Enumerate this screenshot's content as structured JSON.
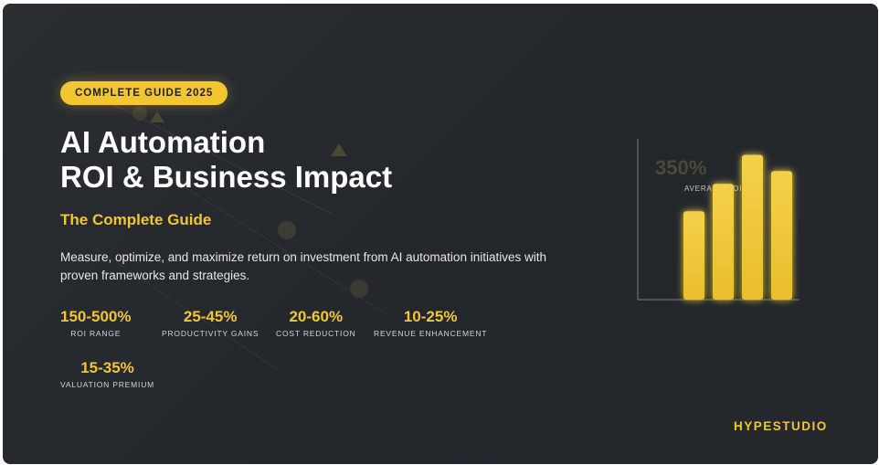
{
  "badge": "COMPLETE GUIDE 2025",
  "title": {
    "line1": "AI Automation",
    "line2": "ROI & Business Impact"
  },
  "subtitle": "The Complete Guide",
  "description": "Measure, optimize, and maximize return on investment from AI automation initiatives with proven frameworks and strategies.",
  "stats": [
    {
      "value": "150-500%",
      "label": "ROI RANGE"
    },
    {
      "value": "25-45%",
      "label": "PRODUCTIVITY GAINS"
    },
    {
      "value": "20-60%",
      "label": "COST REDUCTION"
    },
    {
      "value": "10-25%",
      "label": "REVENUE ENHANCEMENT"
    },
    {
      "value": "15-35%",
      "label": "VALUATION PREMIUM"
    }
  ],
  "chart_overlay": {
    "value": "350%",
    "label": "AVERAGE ROI"
  },
  "chart_bars": [
    0.55,
    0.72,
    0.9,
    0.8
  ],
  "brand": "HYPESTUDIO",
  "colors": {
    "accent": "#f2c531",
    "background": "#272b2f",
    "text": "#ffffff"
  }
}
